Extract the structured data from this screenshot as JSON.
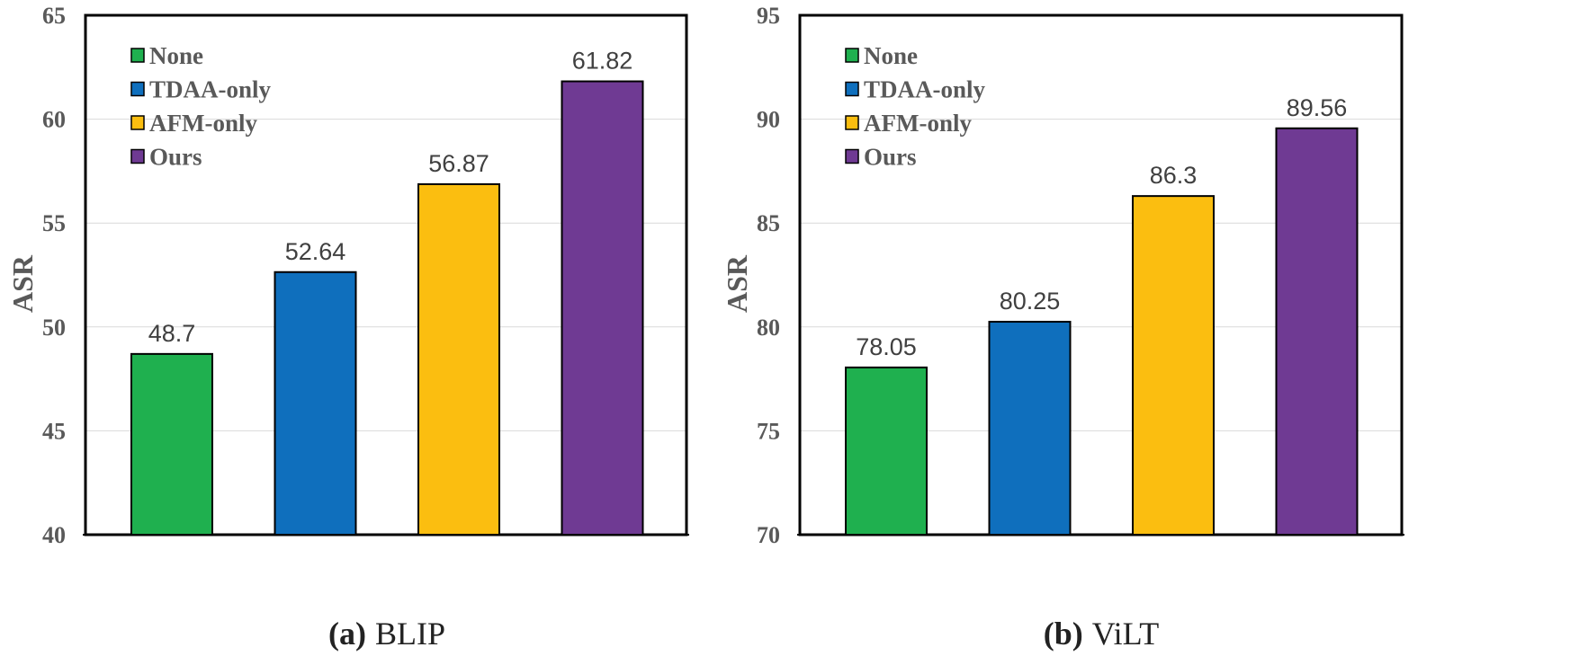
{
  "colors": {
    "none": "#1fb04f",
    "tdaa": "#0f6fbd",
    "afm": "#fbbe10",
    "ours": "#6f3a93"
  },
  "chart_data": [
    {
      "type": "bar",
      "caption_letter": "(a)",
      "caption_name": "BLIP",
      "ylabel": "ASR",
      "ylim": [
        40,
        65
      ],
      "yticks": [
        "40",
        "45",
        "50",
        "55",
        "60",
        "65"
      ],
      "categories": [
        "None",
        "TDAA-only",
        "AFM-only",
        "Ours"
      ],
      "values": [
        48.7,
        52.64,
        56.87,
        61.82
      ],
      "value_labels": [
        "48.7",
        "52.64",
        "56.87",
        "61.82"
      ],
      "legend": [
        "None",
        "TDAA-only",
        "AFM-only",
        "Ours"
      ],
      "legend_position": "top-left",
      "grid": true
    },
    {
      "type": "bar",
      "caption_letter": "(b)",
      "caption_name": "ViLT",
      "ylabel": "ASR",
      "ylim": [
        70,
        95
      ],
      "yticks": [
        "70",
        "75",
        "80",
        "85",
        "90",
        "95"
      ],
      "categories": [
        "None",
        "TDAA-only",
        "AFM-only",
        "Ours"
      ],
      "values": [
        78.05,
        80.25,
        86.3,
        89.56
      ],
      "value_labels": [
        "78.05",
        "80.25",
        "86.3",
        "89.56"
      ],
      "legend": [
        "None",
        "TDAA-only",
        "AFM-only",
        "Ours"
      ],
      "legend_position": "top-left",
      "grid": true
    }
  ]
}
